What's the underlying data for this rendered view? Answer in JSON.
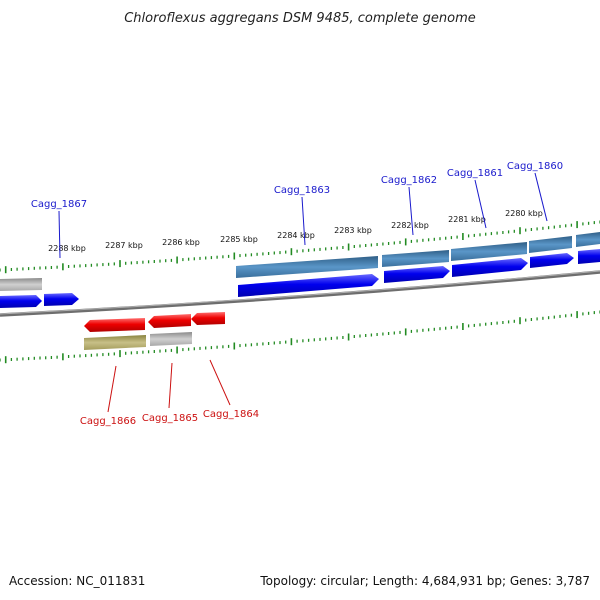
{
  "title": "Chloroflexus aggregans DSM 9485, complete genome",
  "footer": {
    "accession": "Accession: NC_011831",
    "summary": "Topology: circular; Length: 4,684,931 bp; Genes: 3,787"
  },
  "colors": {
    "background": "#ffffff",
    "backbone": "#808080",
    "cds_forward": "#0000ee",
    "cds_reverse": "#ee0000",
    "gene_forward": "#4682b4",
    "gene_gray": "#b8b8b8",
    "gene_olive": "#b8b070",
    "tick": "#228b22",
    "label_forward": "#1a1acc",
    "label_reverse": "#cc1111"
  },
  "scale_labels": [
    "2288 kbp",
    "2287 kbp",
    "2286 kbp",
    "2285 kbp",
    "2284 kbp",
    "2283 kbp",
    "2282 kbp",
    "2281 kbp",
    "2280 kbp"
  ],
  "forward_labels": [
    "Cagg_1867",
    "Cagg_1863",
    "Cagg_1862",
    "Cagg_1861",
    "Cagg_1860"
  ],
  "reverse_labels": [
    "Cagg_1866",
    "Cagg_1865",
    "Cagg_1864"
  ]
}
